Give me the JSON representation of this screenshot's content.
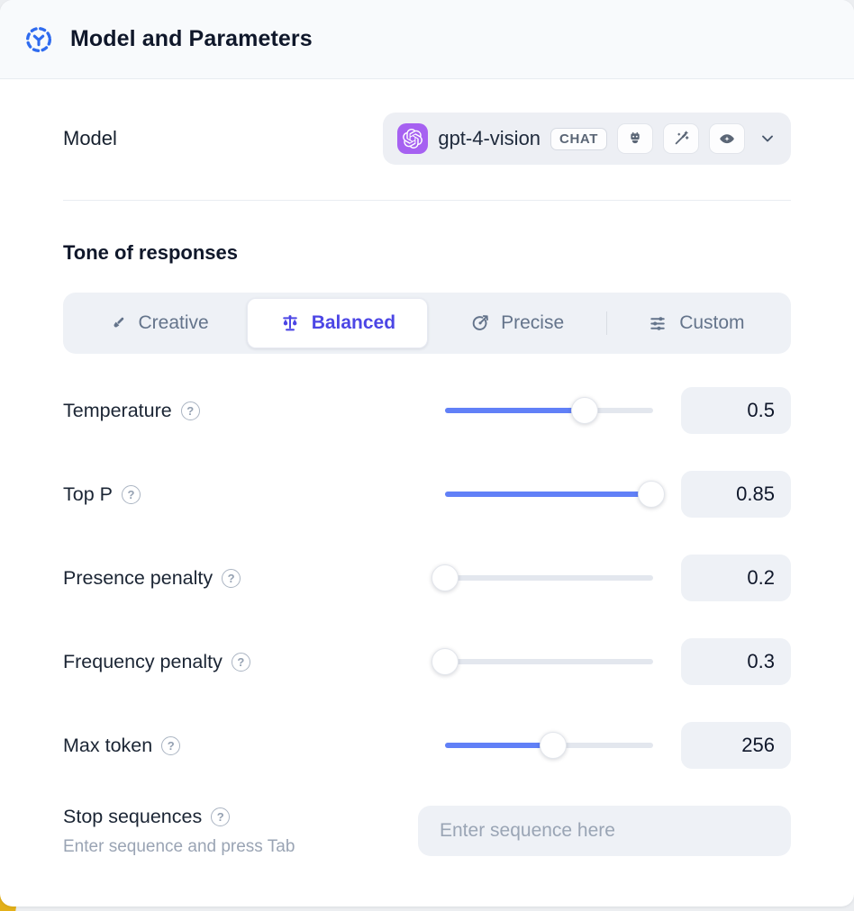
{
  "header": {
    "title": "Model and Parameters",
    "icon": "model-hub-icon"
  },
  "model_row": {
    "label": "Model",
    "selected_model": {
      "provider_icon": "openai-logo-icon",
      "name": "gpt-4-vision",
      "type_badge": "CHAT",
      "capability_icons": [
        "plugins-robot-icon",
        "magic-wand-icon",
        "vision-eye-icon"
      ]
    }
  },
  "tone": {
    "heading": "Tone of responses",
    "options": [
      {
        "label": "Creative",
        "icon": "paintbrush-icon",
        "selected": false,
        "divider_before": false
      },
      {
        "label": "Balanced",
        "icon": "balance-scale-icon",
        "selected": true,
        "divider_before": false
      },
      {
        "label": "Precise",
        "icon": "target-icon",
        "selected": false,
        "divider_before": false
      },
      {
        "label": "Custom",
        "icon": "sliders-icon",
        "selected": false,
        "divider_before": true
      }
    ]
  },
  "parameters": [
    {
      "label": "Temperature",
      "value": "0.5",
      "slider_percent": 67
    },
    {
      "label": "Top P",
      "value": "0.85",
      "slider_percent": 99
    },
    {
      "label": "Presence penalty",
      "value": "0.2",
      "slider_percent": 0
    },
    {
      "label": "Frequency penalty",
      "value": "0.3",
      "slider_percent": 0
    },
    {
      "label": "Max token",
      "value": "256",
      "slider_percent": 52
    }
  ],
  "stop_sequences": {
    "label": "Stop sequences",
    "helper": "Enter sequence and press Tab",
    "placeholder": "Enter sequence here"
  },
  "colors": {
    "accent_blue": "#2f6bef",
    "active_indigo": "#4c46e5",
    "slider_blue": "#6180f7",
    "provider_purple": "#a661f1",
    "corner_yellow": "#e3b019"
  }
}
